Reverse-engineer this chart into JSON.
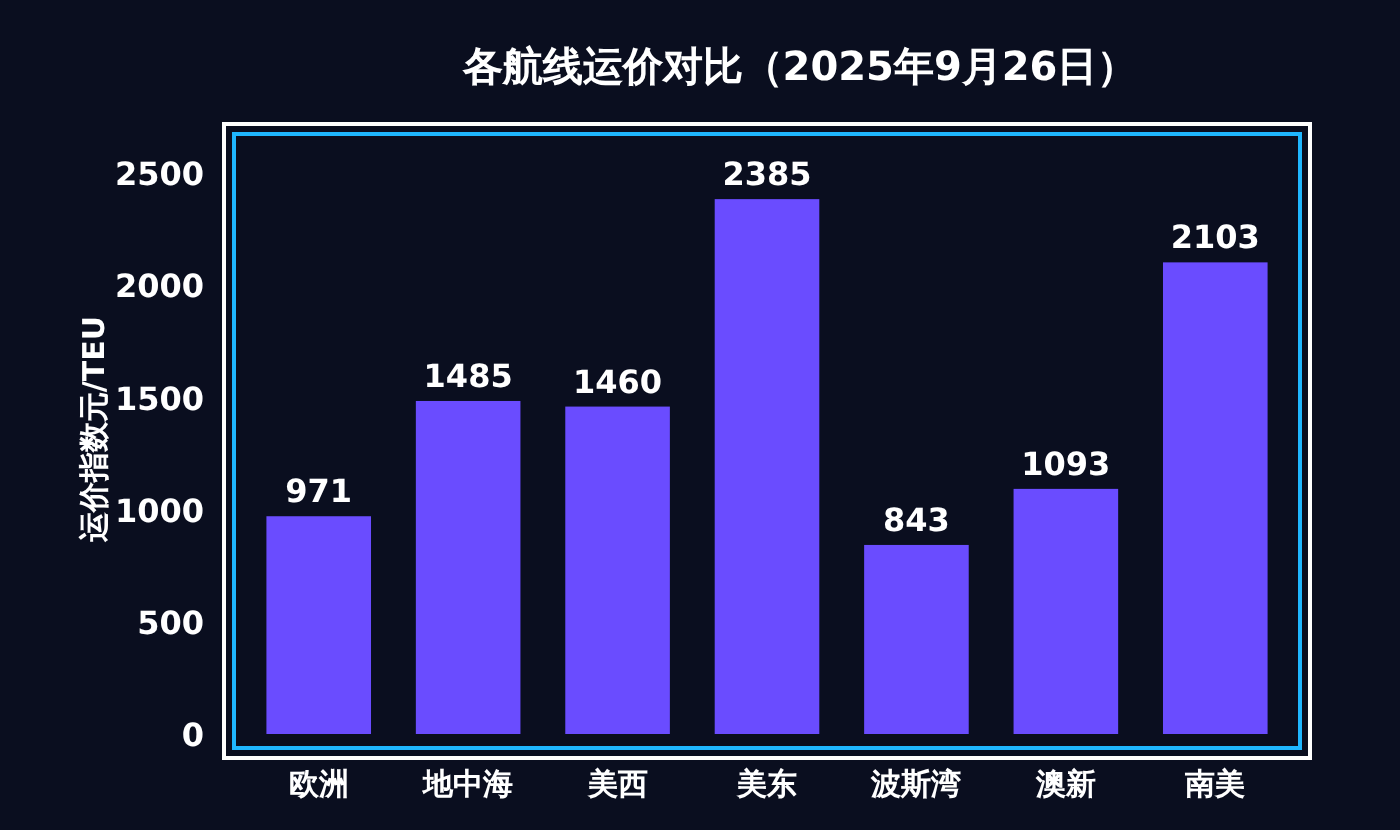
{
  "chart_data": {
    "type": "bar",
    "title": "各航线运价对比（2025年9月26日）",
    "ylabel": "运价指数元/TEU",
    "categories": [
      "欧洲",
      "地中海",
      "美西",
      "美东",
      "波斯湾",
      "澳新",
      "南美"
    ],
    "values": [
      971,
      1485,
      1460,
      2385,
      843,
      1093,
      2103
    ],
    "color": "#6a4cff",
    "ylim": [
      0,
      2720
    ],
    "yticks": [
      0,
      500,
      1000,
      1500,
      2000,
      2500
    ],
    "data_labels": true,
    "grid": false
  }
}
